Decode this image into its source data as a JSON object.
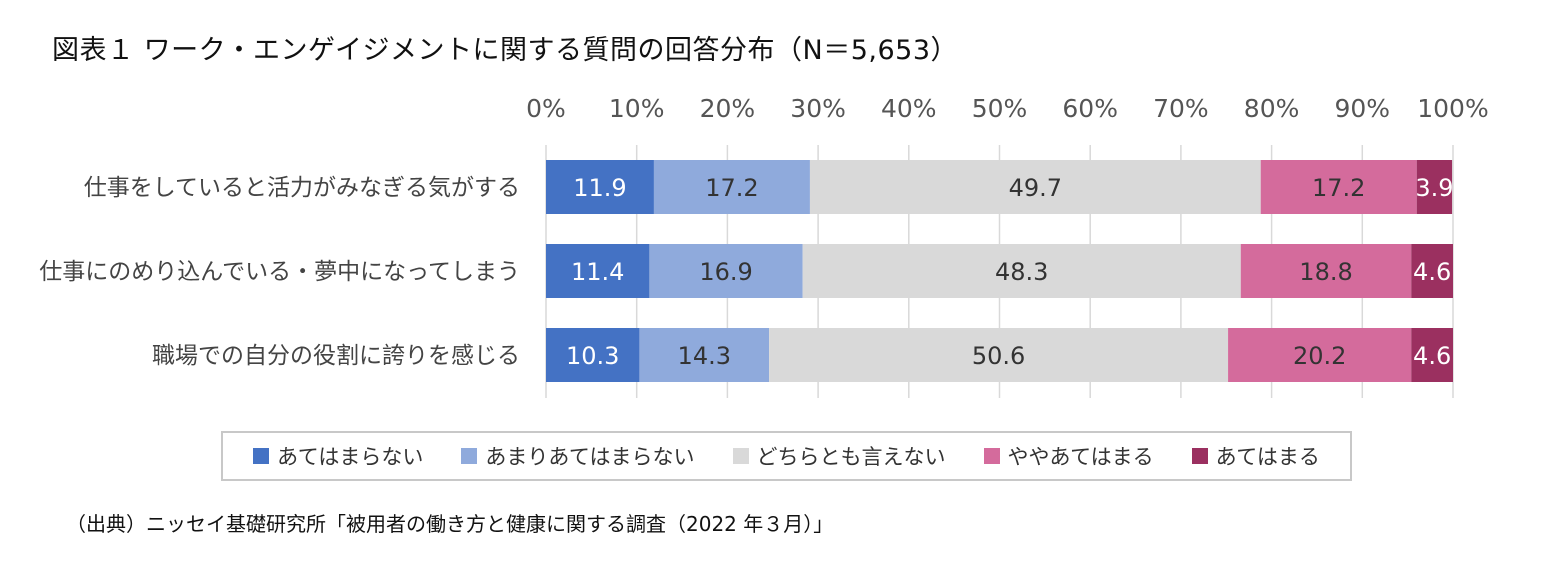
{
  "title": "図表１ ワーク・エンゲイジメントに関する質問の回答分布（N＝5,653）",
  "source": "（出典）ニッセイ基礎研究所「被用者の働き方と健康に関する調査（2022 年３月）」",
  "chart_data": {
    "type": "bar",
    "orientation": "horizontal",
    "stacked": true,
    "xlim": [
      0,
      100
    ],
    "x_ticks": [
      "0%",
      "10%",
      "20%",
      "30%",
      "40%",
      "50%",
      "60%",
      "70%",
      "80%",
      "90%",
      "100%"
    ],
    "categories": [
      "仕事をしていると活力がみなぎる気がする",
      "仕事にのめり込んでいる・夢中になってしまう",
      "職場での自分の役割に誇りを感じる"
    ],
    "series": [
      {
        "name": "あてはまらない",
        "color": "#4472c4",
        "label_color": "#ffffff",
        "values": [
          11.9,
          11.4,
          10.3
        ]
      },
      {
        "name": "あまりあてはまらない",
        "color": "#8faadc",
        "label_color": "#333333",
        "values": [
          17.2,
          16.9,
          14.3
        ]
      },
      {
        "name": "どちらとも言えない",
        "color": "#d9d9d9",
        "label_color": "#333333",
        "values": [
          49.7,
          48.3,
          50.6
        ]
      },
      {
        "name": "ややあてはまる",
        "color": "#d46b9c",
        "label_color": "#333333",
        "values": [
          17.2,
          18.8,
          20.2
        ]
      },
      {
        "name": "あてはまる",
        "color": "#9b3060",
        "label_color": "#ffffff",
        "values": [
          3.9,
          4.6,
          4.6
        ]
      }
    ],
    "grid": true,
    "legend_position": "bottom"
  }
}
